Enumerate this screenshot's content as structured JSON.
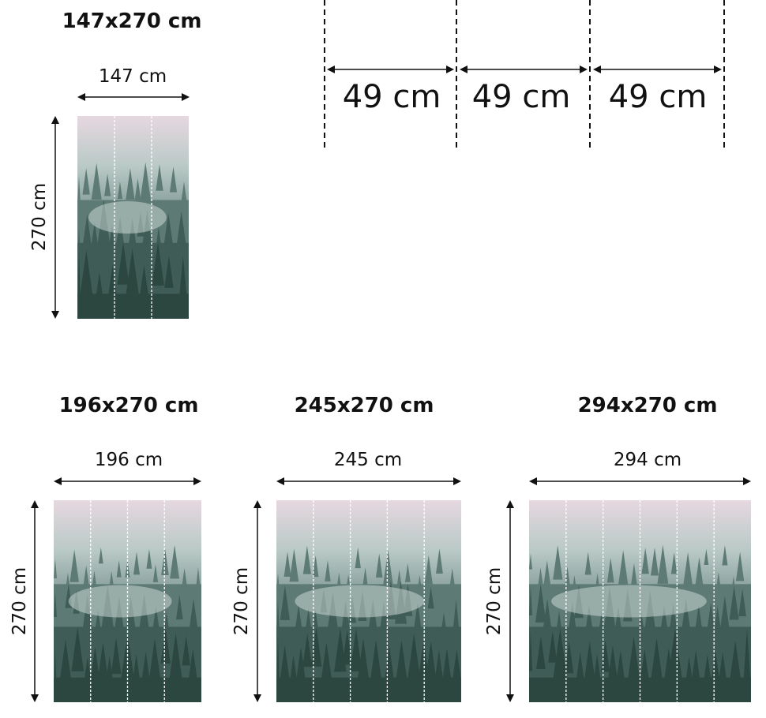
{
  "top": {
    "title": "147x270 cm",
    "width_label": "147 cm",
    "height_label": "270 cm",
    "panels": 3
  },
  "panel_widths": [
    "49 cm",
    "49 cm",
    "49 cm"
  ],
  "variants": [
    {
      "title": "196x270 cm",
      "width_label": "196 cm",
      "height_label": "270 cm",
      "panels": 4
    },
    {
      "title": "245x270 cm",
      "width_label": "245 cm",
      "height_label": "270 cm",
      "panels": 5
    },
    {
      "title": "294x270 cm",
      "width_label": "294 cm",
      "height_label": "270 cm",
      "panels": 6
    }
  ],
  "colors": {
    "sky": "#e6d8e0",
    "mist": "#b9c9c6",
    "forest": "#2f4a44",
    "dark": "#22352f"
  }
}
